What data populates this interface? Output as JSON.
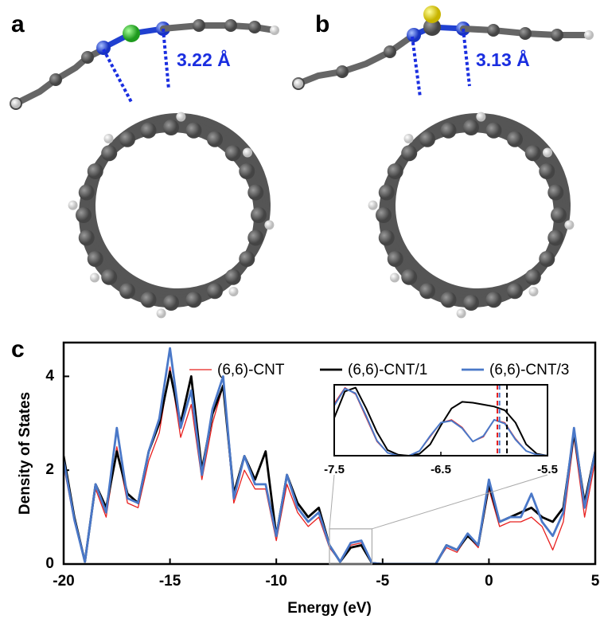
{
  "panels": {
    "a": {
      "label": "a",
      "distance": "3.22 Å"
    },
    "b": {
      "label": "b",
      "distance": "3.13 Å"
    },
    "c": {
      "label": "c"
    }
  },
  "chart_data": [
    {
      "type": "line",
      "xlabel": "Energy (eV)",
      "ylabel": "Density of States",
      "xlim": [
        -20,
        5
      ],
      "ylim": [
        0,
        4.72
      ],
      "xticks": [
        -20,
        -15,
        -10,
        -5,
        0,
        5
      ],
      "yticks": [
        0,
        2,
        4
      ],
      "x": [
        -20,
        -19.5,
        -19,
        -18.5,
        -18,
        -17.5,
        -17,
        -16.5,
        -16,
        -15.5,
        -15,
        -14.5,
        -14,
        -13.5,
        -13,
        -12.5,
        -12,
        -11.5,
        -11,
        -10.5,
        -10,
        -9.5,
        -9,
        -8.5,
        -8,
        -7.5,
        -7,
        -6.5,
        -6,
        -5.5,
        -5,
        -4.5,
        -4,
        -3.5,
        -3,
        -2.5,
        -2,
        -1.5,
        -1,
        -0.5,
        0,
        0.5,
        1,
        1.5,
        2,
        2.5,
        3,
        3.5,
        4,
        4.5,
        5
      ],
      "series": [
        {
          "name": "(6,6)-CNT",
          "color": "#e8201f",
          "width": 1.3,
          "values": [
            2.1,
            0.9,
            0.05,
            1.6,
            1.0,
            2.5,
            1.3,
            1.2,
            2.2,
            2.8,
            4.2,
            2.7,
            3.4,
            1.8,
            3.0,
            3.8,
            1.3,
            2.0,
            1.6,
            1.6,
            0.5,
            1.7,
            1.1,
            0.8,
            1.0,
            0.35,
            0.05,
            0.4,
            0.45,
            0.02,
            0,
            0,
            0,
            0,
            0,
            0,
            0.35,
            0.25,
            0.6,
            0.35,
            1.6,
            0.8,
            0.9,
            0.9,
            1.0,
            0.8,
            0.3,
            0.9,
            2.7,
            1.0,
            2.2
          ]
        },
        {
          "name": "(6,6)-CNT/1",
          "color": "#000000",
          "width": 2.8,
          "values": [
            2.3,
            1.0,
            0.05,
            1.7,
            1.2,
            2.4,
            1.5,
            1.3,
            2.4,
            3.0,
            4.1,
            3.0,
            4.0,
            2.0,
            3.2,
            3.8,
            1.5,
            2.3,
            1.8,
            2.4,
            0.6,
            1.9,
            1.3,
            1.0,
            1.2,
            0.4,
            0.05,
            0.35,
            0.4,
            0.02,
            0,
            0,
            0,
            0,
            0,
            0,
            0.4,
            0.3,
            0.6,
            0.4,
            1.7,
            0.9,
            1.0,
            1.1,
            1.2,
            1.0,
            0.9,
            1.2,
            2.8,
            1.3,
            2.4
          ]
        },
        {
          "name": "(6,6)-CNT/3",
          "color": "#4a78c8",
          "width": 2.8,
          "values": [
            2.2,
            0.95,
            0.05,
            1.7,
            1.1,
            2.9,
            1.4,
            1.3,
            2.4,
            3.1,
            4.6,
            2.9,
            3.7,
            1.9,
            3.3,
            4.0,
            1.4,
            2.3,
            1.7,
            1.7,
            0.6,
            1.9,
            1.2,
            0.9,
            1.1,
            0.4,
            0.05,
            0.45,
            0.5,
            0.02,
            0,
            0,
            0,
            0,
            0,
            0,
            0.4,
            0.3,
            0.65,
            0.4,
            1.8,
            0.9,
            1.0,
            1.0,
            1.5,
            0.9,
            0.6,
            1.1,
            2.9,
            1.2,
            2.4
          ]
        }
      ],
      "grid": false,
      "legend": "top"
    },
    {
      "type": "line",
      "xlim": [
        -7.5,
        -5.5
      ],
      "ylim": [
        0,
        0.75
      ],
      "xticks": [
        -7.5,
        -6.5,
        -5.5
      ],
      "x": [
        -7.5,
        -7.4,
        -7.3,
        -7.2,
        -7.1,
        -7.0,
        -6.9,
        -6.8,
        -6.7,
        -6.6,
        -6.5,
        -6.4,
        -6.3,
        -6.2,
        -6.1,
        -6.0,
        -5.9,
        -5.8,
        -5.7,
        -5.6,
        -5.5
      ],
      "series": [
        {
          "name": "(6,6)-CNT",
          "color": "#e8201f",
          "width": 1.3,
          "values": [
            0.55,
            0.72,
            0.65,
            0.4,
            0.15,
            0.03,
            0,
            0,
            0.05,
            0.2,
            0.35,
            0.38,
            0.3,
            0.15,
            0.2,
            0.38,
            0.35,
            0.18,
            0.05,
            0.01,
            0
          ]
        },
        {
          "name": "(6,6)-CNT/1",
          "color": "#000000",
          "width": 2,
          "values": [
            0.4,
            0.68,
            0.72,
            0.5,
            0.25,
            0.06,
            0.01,
            0,
            0.02,
            0.12,
            0.32,
            0.5,
            0.57,
            0.56,
            0.54,
            0.52,
            0.48,
            0.35,
            0.12,
            0.02,
            0
          ]
        },
        {
          "name": "(6,6)-CNT/3",
          "color": "#4a78c8",
          "width": 2,
          "values": [
            0.53,
            0.71,
            0.66,
            0.42,
            0.16,
            0.03,
            0,
            0,
            0.05,
            0.21,
            0.35,
            0.37,
            0.29,
            0.15,
            0.21,
            0.38,
            0.34,
            0.17,
            0.05,
            0.01,
            0
          ]
        }
      ],
      "vlines": [
        {
          "x": -5.97,
          "color": "#e8201f"
        },
        {
          "x": -5.95,
          "color": "#4a78c8"
        },
        {
          "x": -5.88,
          "color": "#000000"
        }
      ]
    }
  ]
}
